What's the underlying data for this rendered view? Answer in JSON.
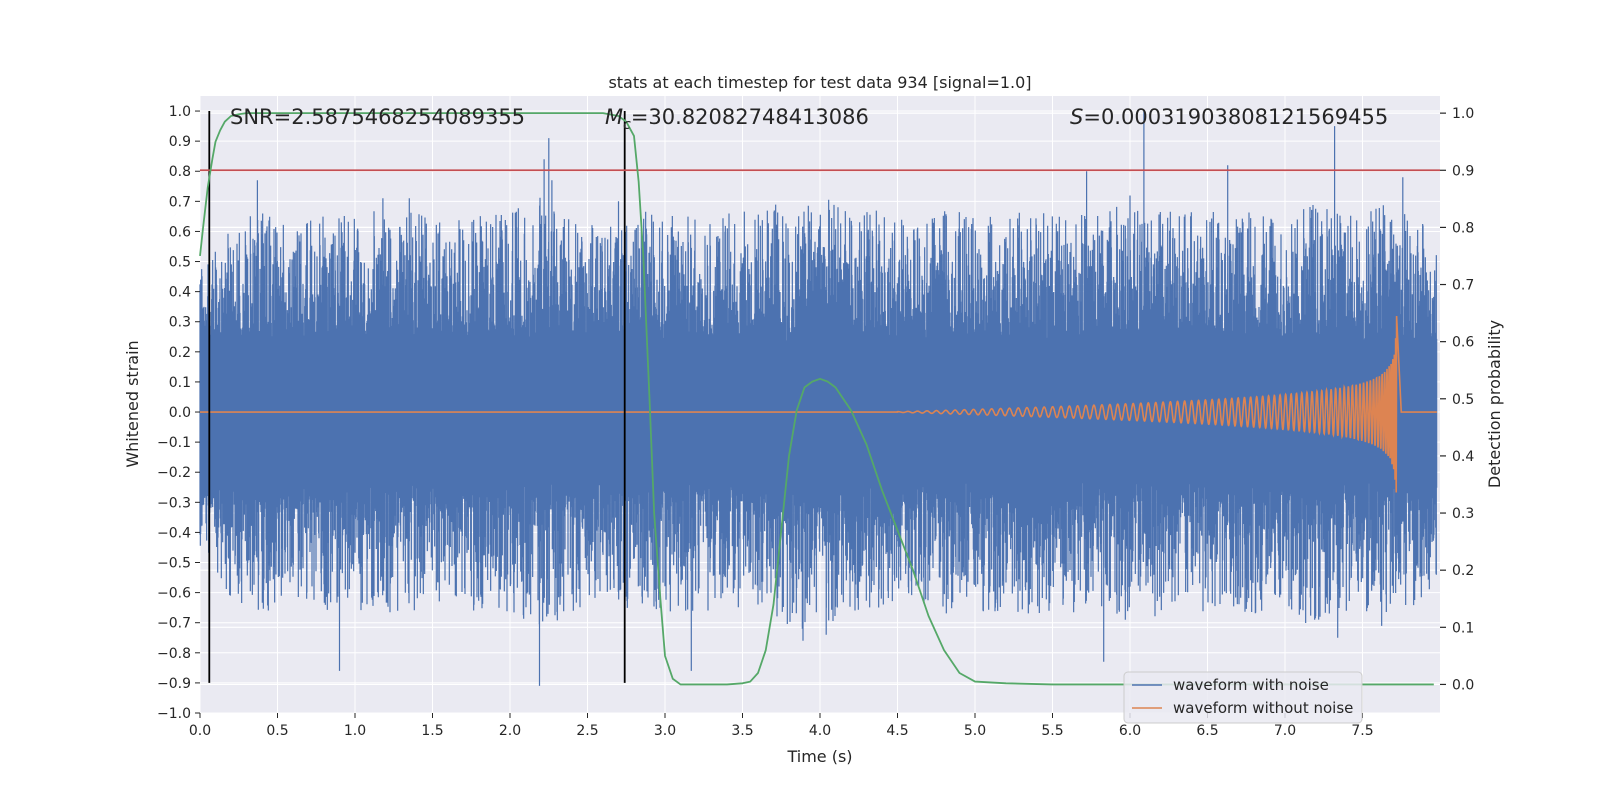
{
  "chart_data": {
    "type": "line",
    "title": "stats at each timestep for test data 934 [signal=1.0]",
    "xlabel": "Time (s)",
    "ylabel": "Whitened strain",
    "y2label": "Detection probability",
    "xlim": [
      0.0,
      8.0
    ],
    "ylim": [
      -1.0,
      1.05
    ],
    "y2lim": [
      -0.05,
      1.03
    ],
    "xticks": [
      0.0,
      0.5,
      1.0,
      1.5,
      2.0,
      2.5,
      3.0,
      3.5,
      4.0,
      4.5,
      5.0,
      5.5,
      6.0,
      6.5,
      7.0,
      7.5
    ],
    "xtick_labels": [
      "0.0",
      "0.5",
      "1.0",
      "1.5",
      "2.0",
      "2.5",
      "3.0",
      "3.5",
      "4.0",
      "4.5",
      "5.0",
      "5.5",
      "6.0",
      "6.5",
      "7.0",
      "7.5"
    ],
    "yticks": [
      -1.0,
      -0.9,
      -0.8,
      -0.7,
      -0.6,
      -0.5,
      -0.4,
      -0.3,
      -0.2,
      -0.1,
      0.0,
      0.1,
      0.2,
      0.3,
      0.4,
      0.5,
      0.6,
      0.7,
      0.8,
      0.9,
      1.0
    ],
    "ytick_labels": [
      "−1.0",
      "−0.9",
      "−0.8",
      "−0.7",
      "−0.6",
      "−0.5",
      "−0.4",
      "−0.3",
      "−0.2",
      "−0.1",
      "0.0",
      "0.1",
      "0.2",
      "0.3",
      "0.4",
      "0.5",
      "0.6",
      "0.7",
      "0.8",
      "0.9",
      "1.0"
    ],
    "y2ticks": [
      0.0,
      0.1,
      0.2,
      0.3,
      0.4,
      0.5,
      0.6,
      0.7,
      0.8,
      0.9,
      1.0
    ],
    "y2tick_labels": [
      "0.0",
      "0.1",
      "0.2",
      "0.3",
      "0.4",
      "0.5",
      "0.6",
      "0.7",
      "0.8",
      "0.9",
      "1.0"
    ],
    "annotations": {
      "snr": "SNR=2.5875468254089355",
      "mc_symbol": "M",
      "mc_sub": "c",
      "mc_value": "=30.82082748413086",
      "s_symbol": "S",
      "s_value": "=0.00031903808121569455"
    },
    "vertical_lines": [
      0.06,
      2.74
    ],
    "vertical_line_range": [
      -0.9,
      1.0
    ],
    "threshold_y2": 0.9,
    "series": [
      {
        "name": "waveform with noise",
        "color": "#4c72b0",
        "noise_envelope": [
          [
            0.0,
            0.35
          ],
          [
            0.2,
            0.5
          ],
          [
            0.4,
            0.55
          ],
          [
            0.6,
            0.5
          ],
          [
            0.8,
            0.55
          ],
          [
            1.0,
            0.55
          ],
          [
            1.2,
            0.55
          ],
          [
            1.4,
            0.55
          ],
          [
            1.6,
            0.5
          ],
          [
            1.8,
            0.55
          ],
          [
            2.0,
            0.55
          ],
          [
            2.2,
            0.6
          ],
          [
            2.4,
            0.55
          ],
          [
            2.6,
            0.5
          ],
          [
            2.8,
            0.55
          ],
          [
            3.0,
            0.55
          ],
          [
            3.2,
            0.55
          ],
          [
            3.4,
            0.55
          ],
          [
            3.6,
            0.55
          ],
          [
            3.8,
            0.6
          ],
          [
            4.0,
            0.6
          ],
          [
            4.2,
            0.55
          ],
          [
            4.4,
            0.55
          ],
          [
            4.6,
            0.5
          ],
          [
            4.8,
            0.55
          ],
          [
            5.0,
            0.55
          ],
          [
            5.2,
            0.55
          ],
          [
            5.4,
            0.55
          ],
          [
            5.6,
            0.55
          ],
          [
            5.8,
            0.55
          ],
          [
            6.0,
            0.6
          ],
          [
            6.2,
            0.55
          ],
          [
            6.4,
            0.55
          ],
          [
            6.6,
            0.55
          ],
          [
            6.8,
            0.55
          ],
          [
            7.0,
            0.55
          ],
          [
            7.2,
            0.6
          ],
          [
            7.4,
            0.55
          ],
          [
            7.6,
            0.6
          ],
          [
            7.8,
            0.55
          ],
          [
            8.0,
            0.45
          ]
        ],
        "spikes": [
          [
            0.37,
            0.77
          ],
          [
            0.9,
            -0.86
          ],
          [
            1.18,
            0.71
          ],
          [
            1.35,
            0.71
          ],
          [
            2.19,
            -0.91
          ],
          [
            2.22,
            0.84
          ],
          [
            2.25,
            0.91
          ],
          [
            2.27,
            0.77
          ],
          [
            3.17,
            -0.86
          ],
          [
            3.89,
            -0.76
          ],
          [
            4.04,
            -0.74
          ],
          [
            6.09,
            1.0
          ],
          [
            5.72,
            0.8
          ],
          [
            5.83,
            -0.83
          ],
          [
            6.63,
            0.82
          ],
          [
            7.32,
            0.95
          ],
          [
            7.34,
            -0.75
          ],
          [
            7.76,
            0.78
          ],
          [
            0.69,
            -0.6
          ],
          [
            2.7,
            0.7
          ]
        ]
      },
      {
        "name": "waveform without noise",
        "color": "#dd8452",
        "chirp": {
          "start": 4.5,
          "merger": 7.72,
          "peak_amplitude": 0.32
        }
      },
      {
        "name": "detection probability",
        "color": "#55a868",
        "axis": "y2",
        "x": [
          0.0,
          0.02,
          0.05,
          0.08,
          0.1,
          0.13,
          0.16,
          0.2,
          0.25,
          0.3,
          0.35,
          0.4,
          0.5,
          1.0,
          1.5,
          2.0,
          2.5,
          2.6,
          2.7,
          2.75,
          2.8,
          2.83,
          2.86,
          2.9,
          2.93,
          2.97,
          3.0,
          3.05,
          3.1,
          3.2,
          3.3,
          3.4,
          3.5,
          3.55,
          3.6,
          3.65,
          3.7,
          3.75,
          3.8,
          3.85,
          3.9,
          3.95,
          4.0,
          4.05,
          4.1,
          4.2,
          4.3,
          4.4,
          4.5,
          4.6,
          4.7,
          4.8,
          4.9,
          5.0,
          5.2,
          5.5,
          6.0,
          6.5,
          7.0,
          7.5,
          7.96
        ],
        "values": [
          0.75,
          0.8,
          0.87,
          0.92,
          0.95,
          0.97,
          0.985,
          0.995,
          0.998,
          1.0,
          1.0,
          1.0,
          1.0,
          1.0,
          1.0,
          1.0,
          1.0,
          1.0,
          0.995,
          0.985,
          0.96,
          0.88,
          0.75,
          0.5,
          0.3,
          0.15,
          0.05,
          0.01,
          0.0,
          0.0,
          0.0,
          0.0,
          0.002,
          0.005,
          0.02,
          0.06,
          0.14,
          0.27,
          0.4,
          0.48,
          0.52,
          0.53,
          0.535,
          0.53,
          0.52,
          0.48,
          0.42,
          0.34,
          0.27,
          0.2,
          0.12,
          0.06,
          0.02,
          0.005,
          0.002,
          0.0,
          0.0,
          0.0,
          0.0,
          0.0,
          0.0
        ]
      }
    ],
    "threshold_color": "#c44e52",
    "vline_color": "#000000",
    "legend_loc": "lower right",
    "legend": [
      "waveform with noise",
      "waveform without noise"
    ],
    "grid": true,
    "background": "#eaeaf2"
  }
}
